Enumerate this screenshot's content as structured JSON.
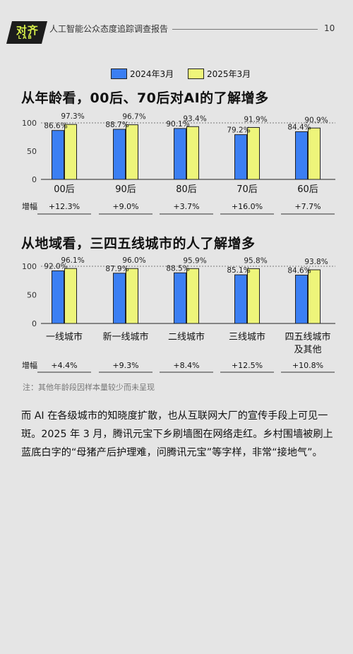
{
  "header": {
    "logo_main": "对齐",
    "logo_sub": "LAB",
    "title": "人工智能公众态度追踪调查报告",
    "page": "10"
  },
  "legend": [
    "2024年3月",
    "2025年3月"
  ],
  "colors": {
    "s2024": "#3b7ff3",
    "s2025": "#eef57a",
    "stroke": "#222222",
    "growth_line": "#333333"
  },
  "chart_data": [
    {
      "type": "bar",
      "title": "从年龄看，00后、70后对AI的了解增多",
      "categories": [
        "00后",
        "90后",
        "80后",
        "70后",
        "60后"
      ],
      "series": [
        {
          "name": "2024年3月",
          "values": [
            86.6,
            88.7,
            90.1,
            79.2,
            84.4
          ]
        },
        {
          "name": "2025年3月",
          "values": [
            97.3,
            96.7,
            93.4,
            91.9,
            90.9
          ]
        }
      ],
      "value_labels": [
        [
          "86.6%",
          "88.7%",
          "90.1%",
          "79.2%",
          "84.4%"
        ],
        [
          "97.3%",
          "96.7%",
          "93.4%",
          "91.9%",
          "90.9%"
        ]
      ],
      "ylim": [
        0,
        100
      ],
      "yticks": [
        "0",
        "50",
        "100"
      ],
      "growth_label": "增幅",
      "growth": [
        "+12.3%",
        "+9.0%",
        "+3.7%",
        "+16.0%",
        "+7.7%"
      ]
    },
    {
      "type": "bar",
      "title": "从地域看，三四五线城市的人了解增多",
      "categories": [
        "一线城市",
        "新一线城市",
        "二线城市",
        "三线城市",
        "四五线城市\n及其他"
      ],
      "series": [
        {
          "name": "2024年3月",
          "values": [
            92.0,
            87.9,
            88.5,
            85.1,
            84.6
          ]
        },
        {
          "name": "2025年3月",
          "values": [
            96.1,
            96.0,
            95.9,
            95.8,
            93.8
          ]
        }
      ],
      "value_labels": [
        [
          "92.0%",
          "87.9%",
          "88.5%",
          "85.1%",
          "84.6%"
        ],
        [
          "96.1%",
          "96.0%",
          "95.9%",
          "95.8%",
          "93.8%"
        ]
      ],
      "ylim": [
        0,
        100
      ],
      "yticks": [
        "0",
        "50",
        "100"
      ],
      "growth_label": "增幅",
      "growth": [
        "+4.4%",
        "+9.3%",
        "+8.4%",
        "+12.5%",
        "+10.8%"
      ]
    }
  ],
  "note": "注：其他年龄段因样本量较少而未呈现",
  "paragraph": "而 AI 在各级城市的知晓度扩散，也从互联网大厂的宣传手段上可见一斑。2025 年 3 月，腾讯元宝下乡刷墙图在网络走红。乡村围墙被刷上蓝底白字的“母猪产后护理难，问腾讯元宝”等字样，非常“接地气”。"
}
